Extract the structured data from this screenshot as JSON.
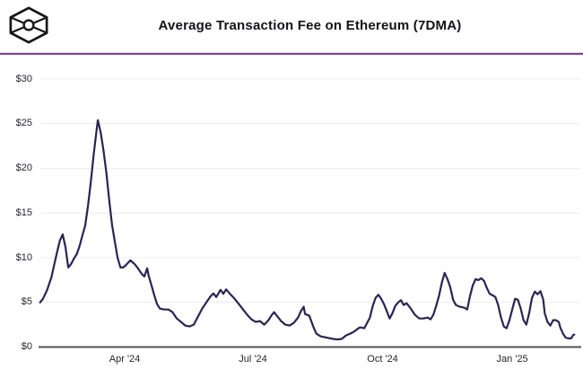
{
  "header": {
    "title": "Average Transaction Fee on Ethereum (7DMA)",
    "logo_icon": "block-cube-logo"
  },
  "colors": {
    "background": "#ffffff",
    "line": "#2a2453",
    "grid": "#ecebf1",
    "axis": "#4f4f56",
    "tick_label": "#26262c",
    "title": "#131318",
    "divider": "#7c4597",
    "logo": "#161616"
  },
  "chart_data": {
    "type": "line",
    "title": "Average Transaction Fee on Ethereum (7DMA)",
    "unit": "USD",
    "ylim": [
      0,
      30
    ],
    "grid": "horizontal",
    "legend": "none",
    "y_ticks": [
      {
        "value": 0,
        "label": "$0"
      },
      {
        "value": 5,
        "label": "$5"
      },
      {
        "value": 10,
        "label": "$10"
      },
      {
        "value": 15,
        "label": "$15"
      },
      {
        "value": 20,
        "label": "$20"
      },
      {
        "value": 25,
        "label": "$25"
      },
      {
        "value": 30,
        "label": "$30"
      }
    ],
    "x_ticks": [
      {
        "date": "2024-04-01",
        "label": "Apr '24"
      },
      {
        "date": "2024-07-01",
        "label": "Jul '24"
      },
      {
        "date": "2024-10-01",
        "label": "Oct '24"
      },
      {
        "date": "2025-01-01",
        "label": "Jan '25"
      }
    ],
    "series": [
      {
        "name": "Average transaction fee, 7-day moving average (USD)",
        "color": "#2a2453",
        "points": [
          [
            "2024-02-01",
            5.0
          ],
          [
            "2024-02-03",
            5.4
          ],
          [
            "2024-02-06",
            6.4
          ],
          [
            "2024-02-09",
            7.8
          ],
          [
            "2024-02-11",
            9.2
          ],
          [
            "2024-02-13",
            10.6
          ],
          [
            "2024-02-15",
            11.9
          ],
          [
            "2024-02-17",
            12.6
          ],
          [
            "2024-02-19",
            11.2
          ],
          [
            "2024-02-21",
            8.9
          ],
          [
            "2024-02-23",
            9.3
          ],
          [
            "2024-02-25",
            9.9
          ],
          [
            "2024-02-27",
            10.4
          ],
          [
            "2024-02-29",
            11.3
          ],
          [
            "2024-03-02",
            12.5
          ],
          [
            "2024-03-04",
            13.6
          ],
          [
            "2024-03-06",
            15.8
          ],
          [
            "2024-03-08",
            18.5
          ],
          [
            "2024-03-10",
            21.5
          ],
          [
            "2024-03-12",
            24.2
          ],
          [
            "2024-03-13",
            25.4
          ],
          [
            "2024-03-15",
            24.0
          ],
          [
            "2024-03-17",
            22.0
          ],
          [
            "2024-03-19",
            19.5
          ],
          [
            "2024-03-21",
            16.5
          ],
          [
            "2024-03-23",
            13.7
          ],
          [
            "2024-03-25",
            11.8
          ],
          [
            "2024-03-27",
            10.0
          ],
          [
            "2024-03-29",
            8.9
          ],
          [
            "2024-03-31",
            8.9
          ],
          [
            "2024-04-02",
            9.2
          ],
          [
            "2024-04-05",
            9.7
          ],
          [
            "2024-04-08",
            9.3
          ],
          [
            "2024-04-10",
            8.9
          ],
          [
            "2024-04-13",
            8.2
          ],
          [
            "2024-04-15",
            7.9
          ],
          [
            "2024-04-17",
            8.8
          ],
          [
            "2024-04-18",
            8.0
          ],
          [
            "2024-04-20",
            6.9
          ],
          [
            "2024-04-22",
            5.8
          ],
          [
            "2024-04-24",
            4.8
          ],
          [
            "2024-04-26",
            4.3
          ],
          [
            "2024-04-29",
            4.2
          ],
          [
            "2024-05-02",
            4.2
          ],
          [
            "2024-05-05",
            3.9
          ],
          [
            "2024-05-08",
            3.2
          ],
          [
            "2024-05-11",
            2.8
          ],
          [
            "2024-05-14",
            2.4
          ],
          [
            "2024-05-17",
            2.3
          ],
          [
            "2024-05-20",
            2.5
          ],
          [
            "2024-05-23",
            3.4
          ],
          [
            "2024-05-26",
            4.3
          ],
          [
            "2024-05-29",
            5.0
          ],
          [
            "2024-06-01",
            5.7
          ],
          [
            "2024-06-03",
            6.0
          ],
          [
            "2024-06-05",
            5.6
          ],
          [
            "2024-06-08",
            6.4
          ],
          [
            "2024-06-10",
            5.95
          ],
          [
            "2024-06-12",
            6.45
          ],
          [
            "2024-06-15",
            5.9
          ],
          [
            "2024-06-18",
            5.4
          ],
          [
            "2024-06-21",
            4.8
          ],
          [
            "2024-06-24",
            4.2
          ],
          [
            "2024-06-27",
            3.6
          ],
          [
            "2024-06-30",
            3.1
          ],
          [
            "2024-07-03",
            2.8
          ],
          [
            "2024-07-06",
            2.9
          ],
          [
            "2024-07-09",
            2.5
          ],
          [
            "2024-07-12",
            3.0
          ],
          [
            "2024-07-14",
            3.5
          ],
          [
            "2024-07-16",
            3.9
          ],
          [
            "2024-07-18",
            3.5
          ],
          [
            "2024-07-21",
            2.9
          ],
          [
            "2024-07-24",
            2.5
          ],
          [
            "2024-07-27",
            2.4
          ],
          [
            "2024-07-30",
            2.7
          ],
          [
            "2024-08-02",
            3.3
          ],
          [
            "2024-08-04",
            4.0
          ],
          [
            "2024-08-06",
            4.5
          ],
          [
            "2024-08-07",
            3.7
          ],
          [
            "2024-08-10",
            3.5
          ],
          [
            "2024-08-13",
            2.2
          ],
          [
            "2024-08-15",
            1.5
          ],
          [
            "2024-08-18",
            1.2
          ],
          [
            "2024-08-21",
            1.1
          ],
          [
            "2024-08-24",
            1.0
          ],
          [
            "2024-08-27",
            0.9
          ],
          [
            "2024-08-30",
            0.85
          ],
          [
            "2024-09-02",
            0.9
          ],
          [
            "2024-09-05",
            1.3
          ],
          [
            "2024-09-08",
            1.5
          ],
          [
            "2024-09-11",
            1.75
          ],
          [
            "2024-09-13",
            2.0
          ],
          [
            "2024-09-15",
            2.2
          ],
          [
            "2024-09-18",
            2.1
          ],
          [
            "2024-09-20",
            2.7
          ],
          [
            "2024-09-22",
            3.3
          ],
          [
            "2024-09-24",
            4.6
          ],
          [
            "2024-09-26",
            5.5
          ],
          [
            "2024-09-28",
            5.85
          ],
          [
            "2024-09-30",
            5.4
          ],
          [
            "2024-10-02",
            4.8
          ],
          [
            "2024-10-04",
            4.0
          ],
          [
            "2024-10-06",
            3.2
          ],
          [
            "2024-10-08",
            3.8
          ],
          [
            "2024-10-10",
            4.6
          ],
          [
            "2024-10-12",
            5.0
          ],
          [
            "2024-10-14",
            5.25
          ],
          [
            "2024-10-16",
            4.7
          ],
          [
            "2024-10-18",
            4.9
          ],
          [
            "2024-10-21",
            4.3
          ],
          [
            "2024-10-24",
            3.6
          ],
          [
            "2024-10-27",
            3.2
          ],
          [
            "2024-10-30",
            3.2
          ],
          [
            "2024-11-02",
            3.3
          ],
          [
            "2024-11-04",
            3.1
          ],
          [
            "2024-11-06",
            3.6
          ],
          [
            "2024-11-08",
            4.6
          ],
          [
            "2024-11-10",
            5.7
          ],
          [
            "2024-11-12",
            7.2
          ],
          [
            "2024-11-14",
            8.3
          ],
          [
            "2024-11-16",
            7.6
          ],
          [
            "2024-11-18",
            6.7
          ],
          [
            "2024-11-20",
            5.3
          ],
          [
            "2024-11-22",
            4.7
          ],
          [
            "2024-11-25",
            4.5
          ],
          [
            "2024-11-28",
            4.4
          ],
          [
            "2024-11-30",
            4.2
          ],
          [
            "2024-12-02",
            5.7
          ],
          [
            "2024-12-04",
            6.9
          ],
          [
            "2024-12-06",
            7.6
          ],
          [
            "2024-12-08",
            7.5
          ],
          [
            "2024-12-10",
            7.7
          ],
          [
            "2024-12-12",
            7.4
          ],
          [
            "2024-12-14",
            6.6
          ],
          [
            "2024-12-16",
            5.95
          ],
          [
            "2024-12-18",
            5.8
          ],
          [
            "2024-12-20",
            5.6
          ],
          [
            "2024-12-22",
            4.7
          ],
          [
            "2024-12-24",
            3.3
          ],
          [
            "2024-12-26",
            2.3
          ],
          [
            "2024-12-28",
            2.1
          ],
          [
            "2024-12-30",
            3.0
          ],
          [
            "2025-01-01",
            4.2
          ],
          [
            "2025-01-03",
            5.4
          ],
          [
            "2025-01-05",
            5.3
          ],
          [
            "2025-01-07",
            4.3
          ],
          [
            "2025-01-09",
            3.0
          ],
          [
            "2025-01-11",
            2.5
          ],
          [
            "2025-01-13",
            3.8
          ],
          [
            "2025-01-15",
            5.5
          ],
          [
            "2025-01-17",
            6.2
          ],
          [
            "2025-01-19",
            5.9
          ],
          [
            "2025-01-21",
            6.25
          ],
          [
            "2025-01-23",
            5.3
          ],
          [
            "2025-01-24",
            3.8
          ],
          [
            "2025-01-26",
            2.8
          ],
          [
            "2025-01-28",
            2.4
          ],
          [
            "2025-01-30",
            3.0
          ],
          [
            "2025-02-01",
            3.0
          ],
          [
            "2025-02-03",
            2.8
          ],
          [
            "2025-02-04",
            2.2
          ],
          [
            "2025-02-06",
            1.5
          ],
          [
            "2025-02-08",
            1.05
          ],
          [
            "2025-02-10",
            0.95
          ],
          [
            "2025-02-12",
            1.0
          ],
          [
            "2025-02-13",
            1.3
          ],
          [
            "2025-02-14",
            1.4
          ]
        ]
      }
    ]
  }
}
